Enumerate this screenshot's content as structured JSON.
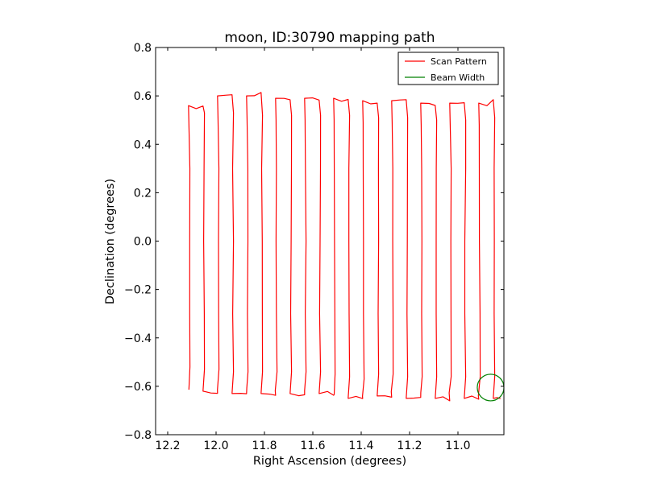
{
  "chart_data": {
    "type": "line",
    "title": "moon, ID:30790 mapping path",
    "xlabel": "Right Ascension (degrees)",
    "ylabel": "Declination (degrees)",
    "xlim": [
      12.25,
      10.81
    ],
    "ylim": [
      -0.8,
      0.8
    ],
    "x_inverted": true,
    "x_ticks": [
      "12.2",
      "12.0",
      "11.8",
      "11.6",
      "11.4",
      "11.2",
      "11.0"
    ],
    "x_tick_values": [
      12.2,
      12.0,
      11.8,
      11.6,
      11.4,
      11.2,
      11.0
    ],
    "y_ticks": [
      "0.8",
      "0.6",
      "0.4",
      "0.2",
      "0.0",
      "−0.2",
      "−0.4",
      "−0.6",
      "−0.8"
    ],
    "y_tick_values": [
      0.8,
      0.6,
      0.4,
      0.2,
      0.0,
      -0.2,
      -0.4,
      -0.6,
      -0.8
    ],
    "legend_position": "top-right",
    "grid": false,
    "series": [
      {
        "name": "Scan Pattern",
        "color": "#ff0000",
        "scan_legs_ra": [
          12.11,
          12.05,
          11.99,
          11.93,
          11.87,
          11.81,
          11.75,
          11.69,
          11.63,
          11.57,
          11.51,
          11.45,
          11.39,
          11.33,
          11.27,
          11.21,
          11.15,
          11.09,
          11.03,
          10.97,
          10.91,
          10.85
        ],
        "leg_top_dec": [
          0.55,
          0.59,
          0.59,
          0.59,
          0.59,
          0.58,
          0.58,
          0.58,
          0.58,
          0.58,
          0.58,
          0.58,
          0.57,
          0.57,
          0.57,
          0.57,
          0.56,
          0.56,
          0.56,
          0.56,
          0.56,
          0.57
        ],
        "leg_bottom_dec": [
          -0.6,
          -0.61,
          -0.61,
          -0.62,
          -0.62,
          -0.62,
          -0.62,
          -0.62,
          -0.62,
          -0.62,
          -0.63,
          -0.64,
          -0.65,
          -0.63,
          -0.63,
          -0.64,
          -0.64,
          -0.64,
          -0.64,
          -0.64,
          -0.64,
          -0.64
        ],
        "dec_range": [
          -0.67,
          0.64
        ]
      },
      {
        "name": "Beam Width",
        "color": "#008000",
        "shape": "circle",
        "center_ra": 10.865,
        "center_dec": -0.605,
        "radius_deg": 0.055
      }
    ]
  }
}
